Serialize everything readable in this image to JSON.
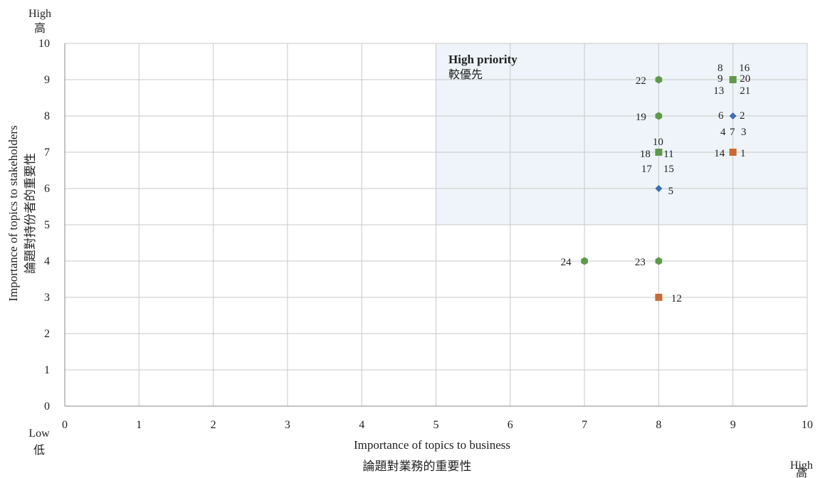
{
  "chart_data": {
    "type": "scatter",
    "xlabel": "Importance of topics to business",
    "xlabel_zh": "論題對業務的重要性",
    "ylabel": "Importance of topics to stakeholders",
    "ylabel_zh": "論題對持份者的重要性",
    "xlim": [
      0,
      10
    ],
    "ylim": [
      0,
      10
    ],
    "x_ticks": [
      "0",
      "1",
      "2",
      "3",
      "4",
      "5",
      "6",
      "7",
      "8",
      "9",
      "10"
    ],
    "y_ticks": [
      "0",
      "1",
      "2",
      "3",
      "4",
      "5",
      "6",
      "7",
      "8",
      "9",
      "10"
    ],
    "grid": true,
    "legend": "none",
    "corner_labels": {
      "y_high": "High",
      "y_high_zh": "高",
      "x_low": "Low",
      "x_low_zh": "低",
      "x_high": "High",
      "x_high_zh": "高"
    },
    "region": {
      "title": "High priority",
      "subtitle": "較優先",
      "x_range": [
        5,
        10
      ],
      "y_range": [
        5,
        10
      ],
      "color": "#eef4f9"
    },
    "colors": {
      "blue": "#3a6fb0",
      "orange": "#c96a32",
      "green": "#5d9a4a"
    },
    "points": [
      {
        "x": 9,
        "y": 9,
        "shape": "square",
        "color": "green"
      },
      {
        "x": 8,
        "y": 9,
        "shape": "hex",
        "color": "green"
      },
      {
        "x": 8,
        "y": 8,
        "shape": "hex",
        "color": "green"
      },
      {
        "x": 9,
        "y": 8,
        "shape": "diamond",
        "color": "blue"
      },
      {
        "x": 8,
        "y": 7,
        "shape": "square",
        "color": "green"
      },
      {
        "x": 9,
        "y": 7,
        "shape": "square",
        "color": "orange"
      },
      {
        "x": 8,
        "y": 6,
        "shape": "diamond",
        "color": "blue"
      },
      {
        "x": 7,
        "y": 4,
        "shape": "hex",
        "color": "green"
      },
      {
        "x": 8,
        "y": 4,
        "shape": "hex",
        "color": "green"
      },
      {
        "x": 8,
        "y": 3,
        "shape": "square",
        "color": "orange"
      }
    ],
    "labels": [
      {
        "text": "8",
        "x": 9,
        "y": 9,
        "dx": -18,
        "dy": -17
      },
      {
        "text": "16",
        "x": 9,
        "y": 9,
        "dx": 16,
        "dy": -17
      },
      {
        "text": "9",
        "x": 9,
        "y": 9,
        "dx": -18,
        "dy": -2
      },
      {
        "text": "20",
        "x": 9,
        "y": 9,
        "dx": 17,
        "dy": -2
      },
      {
        "text": "13",
        "x": 9,
        "y": 9,
        "dx": -20,
        "dy": 15
      },
      {
        "text": "21",
        "x": 9,
        "y": 9,
        "dx": 17,
        "dy": 15
      },
      {
        "text": "22",
        "x": 8,
        "y": 9,
        "dx": -25,
        "dy": 1
      },
      {
        "text": "19",
        "x": 8,
        "y": 8,
        "dx": -25,
        "dy": 1
      },
      {
        "text": "6",
        "x": 9,
        "y": 8,
        "dx": -17,
        "dy": -1
      },
      {
        "text": "2",
        "x": 9,
        "y": 8,
        "dx": 13,
        "dy": -1
      },
      {
        "text": "4",
        "x": 9,
        "y": 8,
        "dx": -14,
        "dy": 22
      },
      {
        "text": "7",
        "x": 9,
        "y": 8,
        "dx": -1,
        "dy": 22
      },
      {
        "text": "3",
        "x": 9,
        "y": 8,
        "dx": 15,
        "dy": 22
      },
      {
        "text": "10",
        "x": 8,
        "y": 7,
        "dx": -1,
        "dy": -15
      },
      {
        "text": "18",
        "x": 8,
        "y": 7,
        "dx": -19,
        "dy": 2
      },
      {
        "text": "11",
        "x": 8,
        "y": 7,
        "dx": 14,
        "dy": 2
      },
      {
        "text": "17",
        "x": 8,
        "y": 7,
        "dx": -17,
        "dy": 23
      },
      {
        "text": "15",
        "x": 8,
        "y": 7,
        "dx": 14,
        "dy": 23
      },
      {
        "text": "14",
        "x": 9,
        "y": 7,
        "dx": -19,
        "dy": 1
      },
      {
        "text": "1",
        "x": 9,
        "y": 7,
        "dx": 14,
        "dy": 1
      },
      {
        "text": "5",
        "x": 8,
        "y": 6,
        "dx": 17,
        "dy": 3
      },
      {
        "text": "24",
        "x": 7,
        "y": 4,
        "dx": -26,
        "dy": 1
      },
      {
        "text": "23",
        "x": 8,
        "y": 4,
        "dx": -26,
        "dy": 1
      },
      {
        "text": "12",
        "x": 8,
        "y": 3,
        "dx": 25,
        "dy": 1
      }
    ]
  }
}
